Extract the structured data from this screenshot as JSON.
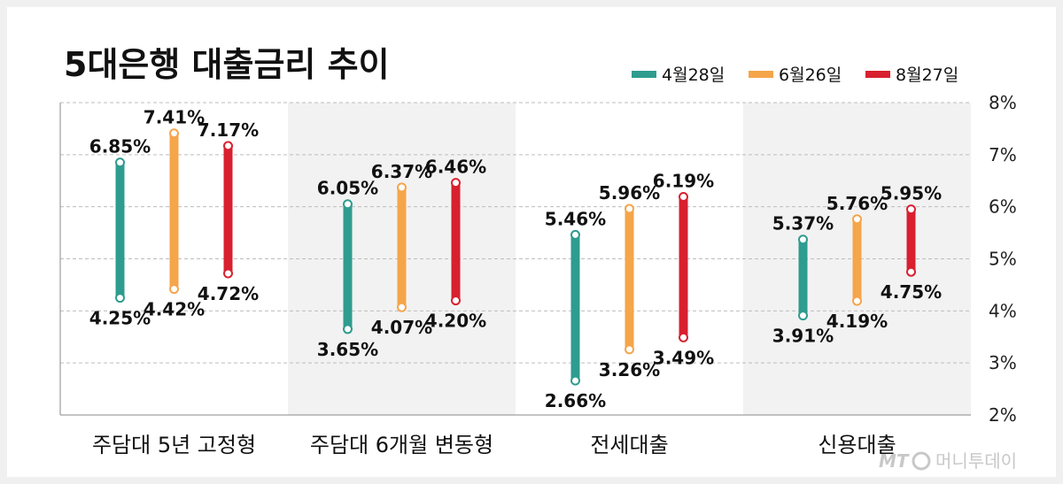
{
  "watermark": "머니투데이",
  "watermark_logo": "MT",
  "colors": {
    "bg": "#f0f0f0",
    "panel": "#ffffff",
    "band": "#f2f2f2",
    "grid": "#bdbdbd",
    "axis": "#888888"
  },
  "chart_data": {
    "type": "range-bar",
    "title": "5대은행 대출금리 추이",
    "categories": [
      "주담대 5년 고정형",
      "주담대 6개월 변동형",
      "전세대출",
      "신용대출"
    ],
    "series": [
      {
        "name": "4월28일",
        "color": "#2e9c8f",
        "low": [
          4.25,
          3.65,
          2.66,
          3.91
        ],
        "high": [
          6.85,
          6.05,
          5.46,
          5.37
        ]
      },
      {
        "name": "6월26일",
        "color": "#f5a54a",
        "low": [
          4.42,
          4.07,
          3.26,
          4.19
        ],
        "high": [
          7.41,
          6.37,
          5.96,
          5.76
        ]
      },
      {
        "name": "8월27일",
        "color": "#d8202f",
        "low": [
          4.72,
          4.2,
          3.49,
          4.75
        ],
        "high": [
          7.17,
          6.46,
          6.19,
          5.95
        ]
      }
    ],
    "low_labels": [
      [
        "4.25%",
        "4.42%",
        "4.72%"
      ],
      [
        "3.65%",
        "4.07%",
        "4.20%"
      ],
      [
        "2.66%",
        "3.26%",
        "3.49%"
      ],
      [
        "3.91%",
        "4.19%",
        "4.75%"
      ]
    ],
    "high_labels": [
      [
        "6.85%",
        "7.41%",
        "7.17%"
      ],
      [
        "6.05%",
        "6.37%",
        "6.46%"
      ],
      [
        "5.46%",
        "5.96%",
        "6.19%"
      ],
      [
        "5.37%",
        "5.76%",
        "5.95%"
      ]
    ],
    "y_ticks": [
      "2%",
      "3%",
      "4%",
      "5%",
      "6%",
      "7%",
      "8%"
    ],
    "y_tick_values": [
      2,
      3,
      4,
      5,
      6,
      7,
      8
    ],
    "ylim": [
      2,
      8
    ],
    "grid": true,
    "legend_position": "top-right",
    "yaxis_position": "right"
  }
}
